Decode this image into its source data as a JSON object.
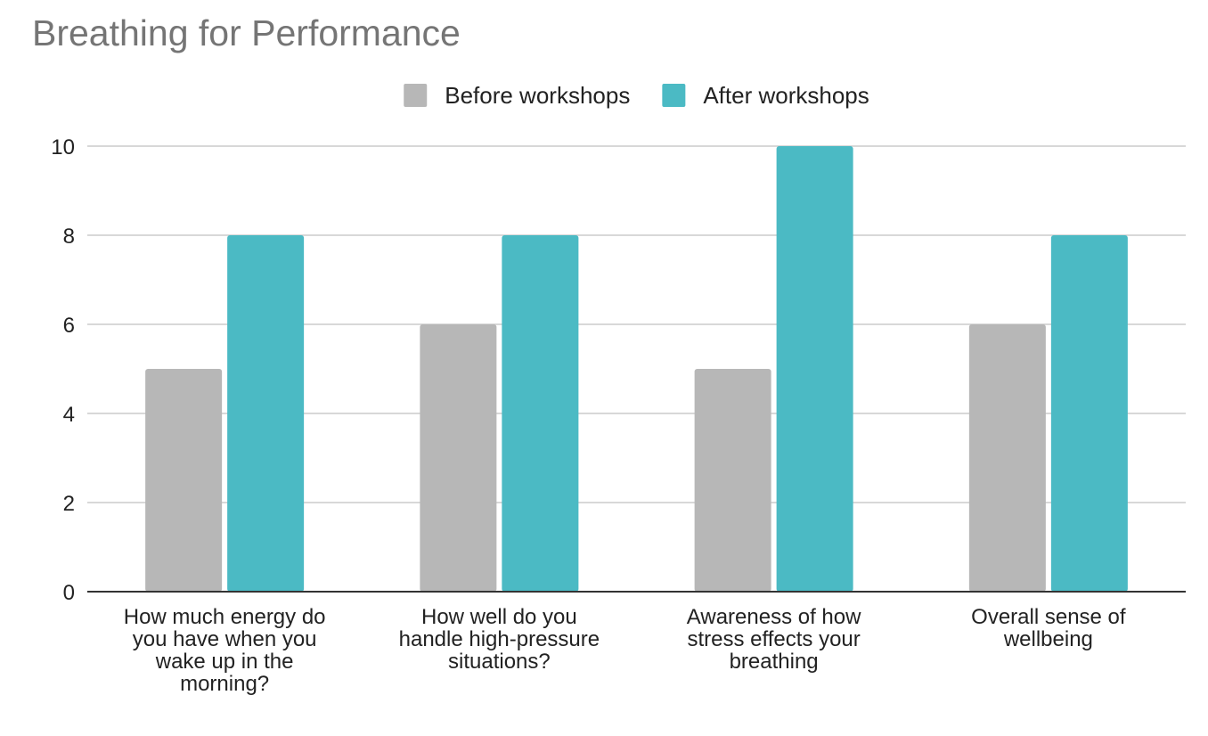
{
  "chart_data": {
    "type": "bar",
    "title": "Breathing for Performance",
    "categories": [
      "How much energy do you have when you wake up in the morning?",
      "How well do you handle high-pressure situations?",
      "Awareness of how stress effects your breathing",
      "Overall sense of wellbeing"
    ],
    "category_lines": [
      [
        "How much energy do",
        "you have when you",
        "wake up in the",
        "morning?"
      ],
      [
        "How well do you",
        "handle high-pressure",
        "situations?"
      ],
      [
        "Awareness of how",
        "stress effects your",
        "breathing"
      ],
      [
        "Overall sense of",
        "wellbeing"
      ]
    ],
    "series": [
      {
        "name": "Before workshops",
        "values": [
          5,
          6,
          5,
          6
        ],
        "color": "#b7b7b7"
      },
      {
        "name": "After workshops",
        "values": [
          8,
          8,
          10,
          8
        ],
        "color": "#4bbac4"
      }
    ],
    "ylim": [
      0,
      10
    ],
    "yticks": [
      0,
      2,
      4,
      6,
      8,
      10
    ],
    "grid": true,
    "legend_position": "top-center",
    "xlabel": "",
    "ylabel": ""
  }
}
